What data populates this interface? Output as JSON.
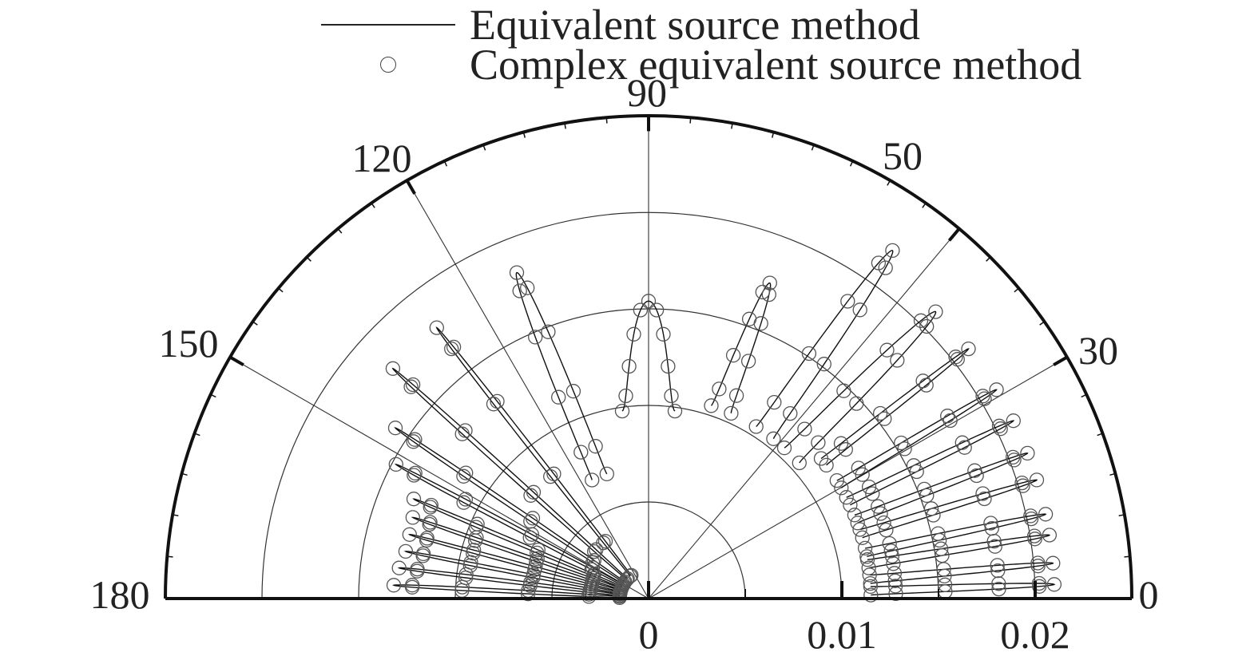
{
  "chart_data": {
    "type": "polar",
    "theta_range": [
      0,
      180
    ],
    "theta_ticks": [
      0,
      30,
      50,
      90,
      120,
      150,
      180
    ],
    "r_range": [
      0,
      0.025
    ],
    "r_ticks": [
      0,
      0.01,
      0.02
    ],
    "r_tick_labels": [
      "0",
      "0.01",
      "0.02"
    ],
    "grid": true,
    "legend": {
      "placement": "top"
    },
    "series": [
      {
        "name": "Equivalent source method",
        "style": "line",
        "lobes": [
          {
            "angle": 2,
            "peak": 0.021
          },
          {
            "angle": 5,
            "peak": 0.021
          },
          {
            "angle": 9,
            "peak": 0.021
          },
          {
            "angle": 12,
            "peak": 0.021
          },
          {
            "angle": 17,
            "peak": 0.021
          },
          {
            "angle": 21,
            "peak": 0.021
          },
          {
            "angle": 26,
            "peak": 0.021
          },
          {
            "angle": 31,
            "peak": 0.021
          },
          {
            "angle": 38,
            "peak": 0.021
          },
          {
            "angle": 45,
            "peak": 0.021
          },
          {
            "angle": 55,
            "peak": 0.022
          },
          {
            "angle": 69,
            "peak": 0.0175
          },
          {
            "angle": 90,
            "peak": 0.0154
          },
          {
            "angle": 112,
            "peak": 0.0182
          },
          {
            "angle": 128,
            "peak": 0.0178
          },
          {
            "angle": 138,
            "peak": 0.0178
          },
          {
            "angle": 146,
            "peak": 0.0158
          },
          {
            "angle": 152,
            "peak": 0.0148
          },
          {
            "angle": 157,
            "peak": 0.0132
          },
          {
            "angle": 161,
            "peak": 0.0129
          },
          {
            "angle": 165,
            "peak": 0.0128
          },
          {
            "angle": 169,
            "peak": 0.0128
          },
          {
            "angle": 173,
            "peak": 0.013
          },
          {
            "angle": 177,
            "peak": 0.0132
          }
        ],
        "nulls": [
          {
            "angle": 79,
            "radius": 0.0098
          },
          {
            "angle": 101,
            "radius": 0.0066
          },
          {
            "angle": 60,
            "radius": 0.0112
          },
          {
            "angle": 172,
            "radius": 0.0015
          }
        ]
      },
      {
        "name": "Complex equivalent source method",
        "style": "circle-markers",
        "note_on_visual": "markers overlay the same lobes"
      }
    ]
  }
}
